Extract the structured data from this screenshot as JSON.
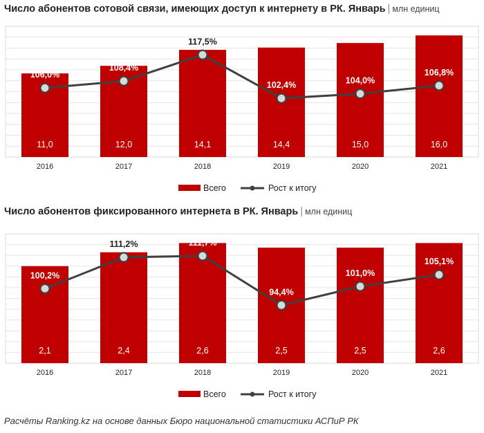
{
  "chart_data": [
    {
      "type": "bar",
      "title": "Число абонентов сотовой связи, имеющих доступ к интернету в РК. Январь",
      "unit": "млн единиц",
      "categories": [
        "2016",
        "2017",
        "2018",
        "2019",
        "2020",
        "2021"
      ],
      "ylim": [
        0,
        17.2
      ],
      "series": [
        {
          "name": "Всего",
          "kind": "bar",
          "color": "#c00000",
          "values": [
            11.0,
            12.0,
            14.1,
            14.4,
            15.0,
            16.0
          ],
          "labels": [
            "11,0",
            "12,0",
            "14,1",
            "14,4",
            "15,0",
            "16,0"
          ]
        },
        {
          "name": "Рост к итогу",
          "kind": "line",
          "color": "#404040",
          "values": [
            106.0,
            108.4,
            117.5,
            102.4,
            104.0,
            106.8
          ],
          "labels": [
            "106,0%",
            "108,4%",
            "117,5%",
            "102,4%",
            "104,0%",
            "106,8%"
          ]
        }
      ],
      "legend": "bottom",
      "grid": true
    },
    {
      "type": "bar",
      "title": "Число абонентов фиксированного интернета в РК. Январь",
      "unit": "млн единиц",
      "categories": [
        "2016",
        "2017",
        "2018",
        "2019",
        "2020",
        "2021"
      ],
      "ylim": [
        0,
        2.8
      ],
      "series": [
        {
          "name": "Всего",
          "kind": "bar",
          "color": "#c00000",
          "values": [
            2.1,
            2.4,
            2.6,
            2.5,
            2.5,
            2.6
          ],
          "labels": [
            "2,1",
            "2,4",
            "2,6",
            "2,5",
            "2,5",
            "2,6"
          ]
        },
        {
          "name": "Рост к итогу",
          "kind": "line",
          "color": "#404040",
          "values": [
            100.2,
            111.2,
            111.7,
            94.4,
            101.0,
            105.1
          ],
          "labels": [
            "100,2%",
            "111,2%",
            "111,7%",
            "94,4%",
            "101,0%",
            "105,1%"
          ]
        }
      ],
      "legend": "bottom",
      "grid": true
    }
  ],
  "footer": "Расчёты Ranking.kz на основе данных Бюро национальной статистики АСПиР РК"
}
